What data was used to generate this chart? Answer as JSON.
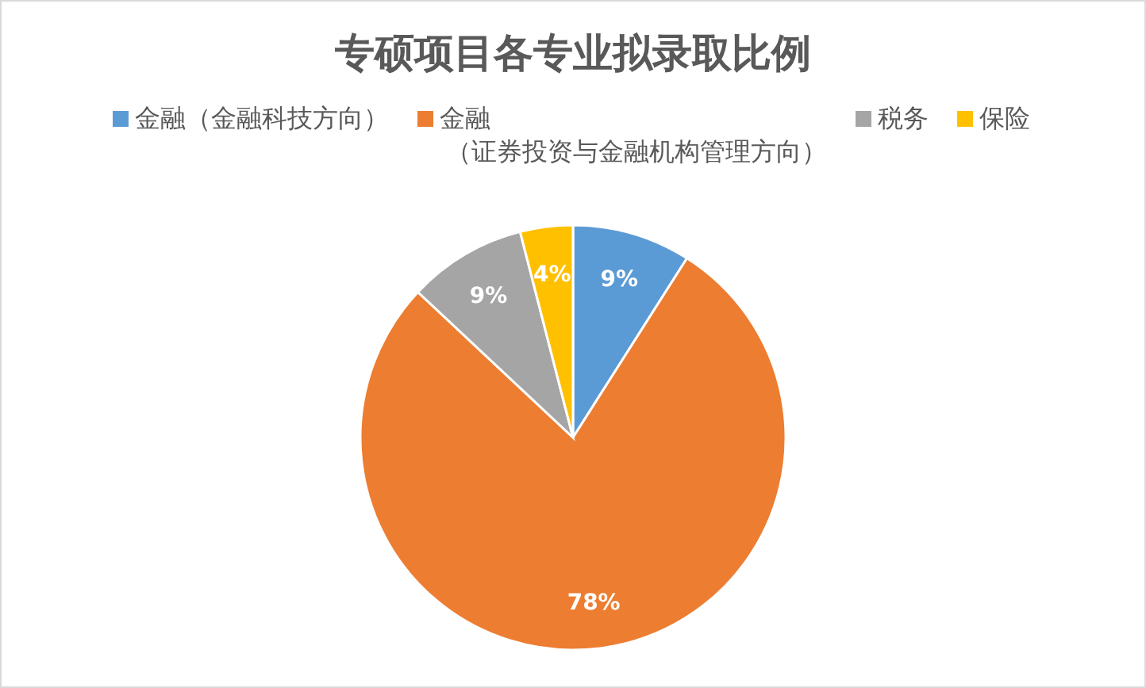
{
  "chart_data": {
    "type": "pie",
    "title": "专硕项目各专业拟录取比例",
    "categories": [
      "金融（金融科技方向）",
      "金融（证券投资与金融机构管理方向）",
      "税务",
      "保险"
    ],
    "values": [
      9,
      78,
      9,
      4
    ],
    "colors": [
      "#5b9bd5",
      "#ed7d31",
      "#a5a5a5",
      "#ffc000"
    ],
    "value_labels": [
      "9%",
      "78%",
      "9%",
      "4%"
    ],
    "legend": "top"
  }
}
